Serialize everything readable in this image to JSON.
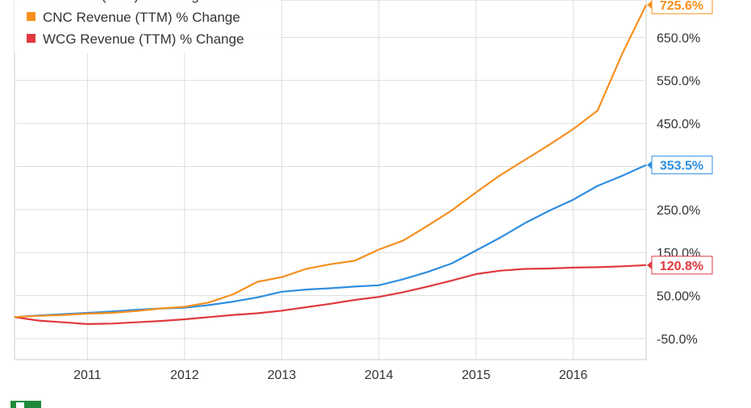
{
  "chart_data": {
    "type": "line",
    "title": "",
    "xlabel": "",
    "ylabel": "",
    "x_ticks": [
      "2011",
      "2012",
      "2013",
      "2014",
      "2015",
      "2016"
    ],
    "y_ticks": [
      "-50.0%",
      "50.00%",
      "150.0%",
      "250.0%",
      "450.0%",
      "550.0%",
      "650.0%"
    ],
    "ylim": [
      -100,
      760
    ],
    "xlim": [
      2010.25,
      2016.75
    ],
    "grid": true,
    "legend_position": "top-left",
    "series": [
      {
        "name": "Revenue (TTM) % Change",
        "color": "#2f8ee0",
        "end_label": "353.5%",
        "points": [
          [
            2010.25,
            0
          ],
          [
            2010.5,
            4
          ],
          [
            2010.75,
            7
          ],
          [
            2011.0,
            10
          ],
          [
            2011.25,
            13
          ],
          [
            2011.5,
            17
          ],
          [
            2011.75,
            20
          ],
          [
            2012.0,
            22
          ],
          [
            2012.25,
            28
          ],
          [
            2012.5,
            36
          ],
          [
            2012.75,
            46
          ],
          [
            2013.0,
            59
          ],
          [
            2013.25,
            64
          ],
          [
            2013.5,
            67
          ],
          [
            2013.75,
            71
          ],
          [
            2014.0,
            74
          ],
          [
            2014.25,
            88
          ],
          [
            2014.5,
            105
          ],
          [
            2014.75,
            125
          ],
          [
            2015.0,
            155
          ],
          [
            2015.25,
            185
          ],
          [
            2015.5,
            218
          ],
          [
            2015.75,
            247
          ],
          [
            2016.0,
            273
          ],
          [
            2016.25,
            305
          ],
          [
            2016.5,
            328
          ],
          [
            2016.75,
            353.5
          ]
        ]
      },
      {
        "name": "CNC Revenue (TTM) % Change",
        "color": "#f68f1e",
        "end_label": "725.6%",
        "points": [
          [
            2010.25,
            0
          ],
          [
            2010.5,
            3
          ],
          [
            2010.75,
            5
          ],
          [
            2011.0,
            8
          ],
          [
            2011.25,
            10
          ],
          [
            2011.5,
            14
          ],
          [
            2011.75,
            20
          ],
          [
            2012.0,
            24
          ],
          [
            2012.25,
            34
          ],
          [
            2012.5,
            53
          ],
          [
            2012.75,
            82
          ],
          [
            2013.0,
            93
          ],
          [
            2013.25,
            112
          ],
          [
            2013.5,
            123
          ],
          [
            2013.75,
            131
          ],
          [
            2014.0,
            157
          ],
          [
            2014.25,
            178
          ],
          [
            2014.5,
            212
          ],
          [
            2014.75,
            248
          ],
          [
            2015.0,
            290
          ],
          [
            2015.25,
            330
          ],
          [
            2015.5,
            365
          ],
          [
            2015.75,
            400
          ],
          [
            2016.0,
            437
          ],
          [
            2016.25,
            480
          ],
          [
            2016.5,
            610
          ],
          [
            2016.75,
            725.6
          ]
        ]
      },
      {
        "name": "WCG Revenue (TTM) % Change",
        "color": "#e0393e",
        "end_label": "120.8%",
        "points": [
          [
            2010.25,
            0
          ],
          [
            2010.5,
            -8
          ],
          [
            2010.75,
            -12
          ],
          [
            2011.0,
            -16
          ],
          [
            2011.25,
            -15
          ],
          [
            2011.5,
            -12
          ],
          [
            2011.75,
            -9
          ],
          [
            2012.0,
            -5
          ],
          [
            2012.25,
            0
          ],
          [
            2012.5,
            5
          ],
          [
            2012.75,
            9
          ],
          [
            2013.0,
            15
          ],
          [
            2013.25,
            23
          ],
          [
            2013.5,
            31
          ],
          [
            2013.75,
            40
          ],
          [
            2014.0,
            47
          ],
          [
            2014.25,
            58
          ],
          [
            2014.5,
            71
          ],
          [
            2014.75,
            85
          ],
          [
            2015.0,
            100
          ],
          [
            2015.25,
            108
          ],
          [
            2015.5,
            112
          ],
          [
            2015.75,
            113
          ],
          [
            2016.0,
            115
          ],
          [
            2016.25,
            116
          ],
          [
            2016.5,
            118
          ],
          [
            2016.75,
            120.8
          ]
        ]
      }
    ]
  }
}
